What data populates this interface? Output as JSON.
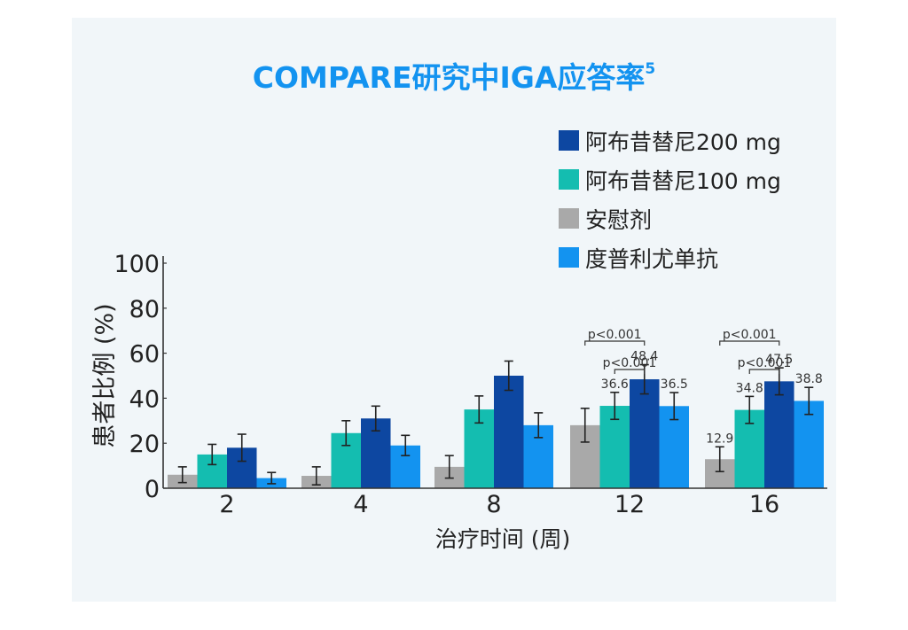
{
  "chart_data": {
    "type": "bar",
    "title": "COMPARE研究中IGA应答率",
    "title_sup": "5",
    "xlabel": "治疗时间 (周)",
    "ylabel": "患者比例 (%)",
    "categories": [
      "2",
      "4",
      "8",
      "12",
      "16"
    ],
    "ylim": [
      0,
      100
    ],
    "yticks": [
      "0",
      "20",
      "40",
      "60",
      "80",
      "100"
    ],
    "legend_position": "top-right",
    "series": [
      {
        "name": "安慰剂",
        "color": "#a9a9a9",
        "values": [
          6,
          5.5,
          9.5,
          28,
          12.9
        ],
        "err": [
          3.5,
          4,
          5,
          7.5,
          5.5
        ],
        "labels": [
          "",
          "",
          "",
          "",
          "12.9"
        ]
      },
      {
        "name": "阿布昔替尼100 mg",
        "color": "#14bdb0",
        "values": [
          15,
          24.5,
          35,
          36.6,
          34.8
        ],
        "err": [
          4.5,
          5.5,
          6,
          6,
          6
        ],
        "labels": [
          "",
          "",
          "",
          "36.6",
          "34.8"
        ]
      },
      {
        "name": "阿布昔替尼200 mg",
        "color": "#0d47a1",
        "values": [
          18,
          31,
          50,
          48.4,
          47.5
        ],
        "err": [
          6,
          5.5,
          6.5,
          6.5,
          6
        ],
        "labels": [
          "",
          "",
          "",
          "48.4",
          "47.5"
        ]
      },
      {
        "name": "度普利尤单抗",
        "color": "#1393f0",
        "values": [
          4.5,
          19,
          28,
          36.5,
          38.8
        ],
        "err": [
          2.5,
          4.5,
          5.5,
          6,
          6
        ],
        "labels": [
          "",
          "",
          "",
          "36.5",
          "38.8"
        ]
      }
    ],
    "legend_order": [
      2,
      1,
      0,
      3
    ],
    "annotations": [
      {
        "text": "p<0.001",
        "group": 3,
        "from": 0,
        "to": 2
      },
      {
        "text": "p<0.001",
        "group": 3,
        "from": 1,
        "to": 2
      },
      {
        "text": "p<0.001",
        "group": 4,
        "from": 0,
        "to": 2
      },
      {
        "text": "p<0.001",
        "group": 4,
        "from": 1,
        "to": 2
      }
    ]
  }
}
